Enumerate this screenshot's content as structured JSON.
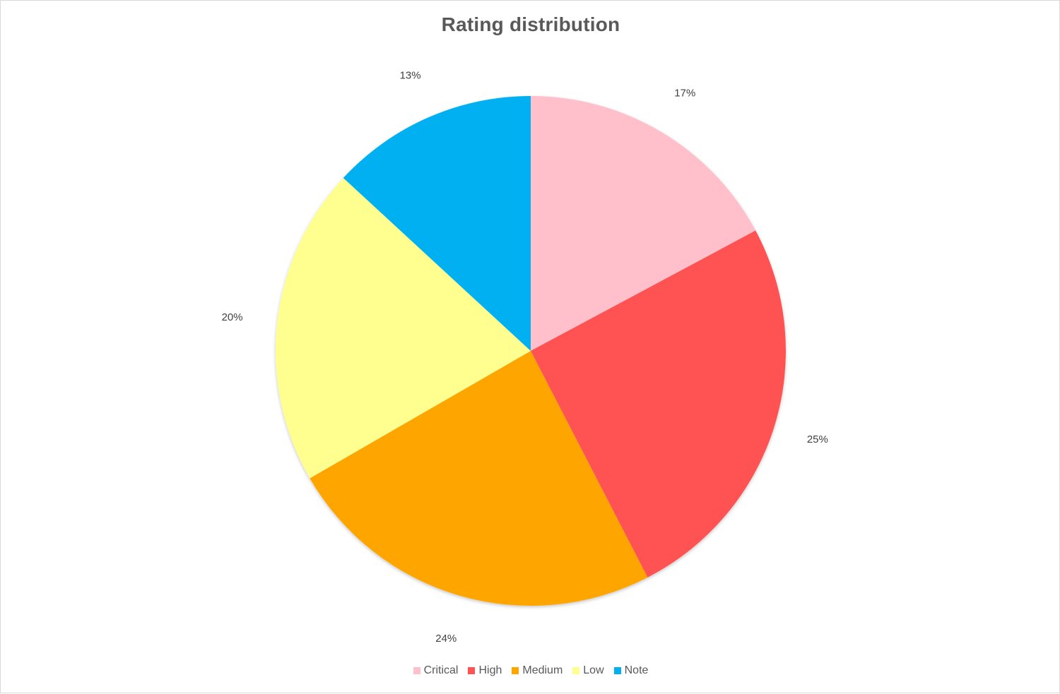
{
  "chart_data": {
    "type": "pie",
    "title": "Rating distribution",
    "categories": [
      "Critical",
      "High",
      "Medium",
      "Low",
      "Note"
    ],
    "values": [
      17,
      25,
      24,
      20,
      13
    ],
    "labels": [
      "17%",
      "25%",
      "24%",
      "20%",
      "13%"
    ],
    "colors": [
      "#FFC0CB",
      "#FF5252",
      "#FFA500",
      "#FFFF8F",
      "#00B0F0"
    ],
    "start_angle": "12 o'clock",
    "direction": "clockwise",
    "legend": "bottom"
  }
}
